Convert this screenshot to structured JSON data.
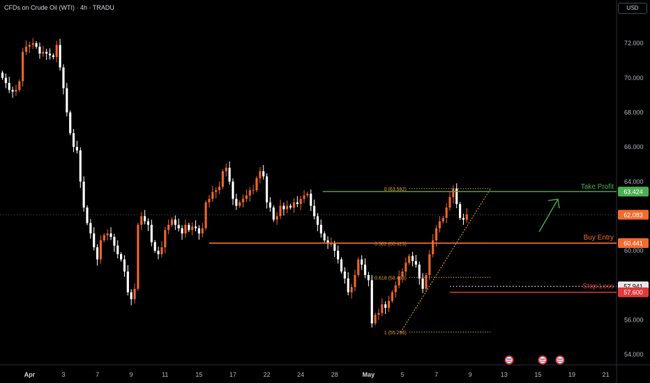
{
  "header": {
    "title": "CFDs on Crude Oil (WTI) · 4h · TRADU"
  },
  "currency": "USD",
  "colors": {
    "background": "#000000",
    "bull": "#e8632b",
    "bear": "#ffffff",
    "take_profit": "#4caf50",
    "buy_entry": "#f26b2d",
    "stop_loss": "#e03a3a",
    "fib": "#f0a030",
    "axis_text": "#b2b5be"
  },
  "chart_data": {
    "type": "candlestick",
    "ylim": [
      53.4,
      74.5
    ],
    "y_ticks": [
      54,
      56,
      58,
      60,
      62,
      64,
      66,
      68,
      70,
      72
    ],
    "y_tick_labels": [
      "54.000",
      "56.000",
      "58.000",
      "60.000",
      "62.000",
      "64.000",
      "66.000",
      "68.000",
      "70.000",
      "72.000"
    ],
    "x_ticks": [
      {
        "label": "Apr",
        "i": 8,
        "bold": true
      },
      {
        "label": "3",
        "i": 18
      },
      {
        "label": "7",
        "i": 28
      },
      {
        "label": "9",
        "i": 38
      },
      {
        "label": "11",
        "i": 48
      },
      {
        "label": "15",
        "i": 58
      },
      {
        "label": "17",
        "i": 68
      },
      {
        "label": "22",
        "i": 78
      },
      {
        "label": "24",
        "i": 88
      },
      {
        "label": "28",
        "i": 98
      },
      {
        "label": "May",
        "i": 108,
        "bold": true
      },
      {
        "label": "5",
        "i": 118
      },
      {
        "label": "7",
        "i": 128
      },
      {
        "label": "9",
        "i": 138
      },
      {
        "label": "13",
        "i": 148
      },
      {
        "label": "15",
        "i": 158
      },
      {
        "label": "19",
        "i": 168
      },
      {
        "label": "21",
        "i": 178
      }
    ],
    "closes": [
      70.0,
      69.7,
      69.3,
      69.2,
      69.3,
      69.8,
      71.5,
      71.8,
      71.9,
      72.0,
      71.8,
      71.4,
      71.5,
      71.4,
      71.3,
      71.2,
      71.9,
      70.6,
      69.4,
      68.0,
      66.8,
      66.0,
      65.8,
      64.0,
      62.5,
      61.6,
      61.0,
      60.2,
      59.5,
      60.6,
      60.9,
      61.0,
      60.8,
      60.3,
      59.8,
      59.5,
      58.8,
      57.6,
      57.2,
      57.8,
      61.5,
      62.0,
      61.7,
      61.5,
      60.5,
      60.0,
      59.8,
      60.2,
      61.2,
      61.5,
      61.8,
      61.5,
      61.3,
      61.0,
      61.5,
      61.2,
      61.4,
      61.3,
      61.0,
      61.3,
      62.8,
      63.0,
      63.4,
      63.5,
      63.7,
      64.6,
      64.8,
      64.0,
      63.0,
      62.6,
      62.8,
      63.0,
      63.2,
      63.5,
      63.5,
      64.2,
      64.6,
      64.3,
      62.8,
      62.5,
      61.8,
      62.0,
      62.6,
      62.4,
      62.6,
      62.5,
      62.8,
      62.7,
      63.0,
      63.2,
      63.3,
      62.6,
      62.0,
      61.5,
      61.0,
      60.6,
      60.4,
      60.4,
      60.0,
      59.5,
      58.8,
      58.4,
      57.6,
      57.9,
      58.6,
      59.5,
      59.2,
      58.6,
      58.3,
      55.8,
      56.3,
      56.4,
      56.9,
      56.7,
      57.1,
      57.6,
      58.0,
      58.5,
      58.8,
      59.3,
      59.7,
      59.4,
      59.2,
      58.4,
      57.8,
      58.6,
      59.8,
      60.6,
      61.3,
      61.7,
      61.9,
      62.5,
      63.1,
      63.6,
      62.7,
      61.9,
      61.8,
      62.1
    ]
  },
  "fib": {
    "levels": [
      {
        "label": "0 (63.592)",
        "value": 63.592
      },
      {
        "label": "0.382 (60.423)",
        "value": 60.423
      },
      {
        "label": "0.618 (58.463)",
        "value": 58.463
      },
      {
        "label": "1 (55.296)",
        "value": 55.296
      }
    ]
  },
  "levels": {
    "take_profit": {
      "label": "Take Profit",
      "value": 63.424,
      "price_label": "63.424"
    },
    "buy_entry": {
      "label": "Buy Entry",
      "value": 60.441,
      "price_label": "60.441"
    },
    "stop_loss": {
      "label": "Stop Loss",
      "value": 57.941,
      "price_label": "57.941"
    },
    "stop_line": {
      "value": 57.6,
      "price_label": "57.600"
    },
    "current": {
      "value": 62.083,
      "price_label": "62.083"
    }
  }
}
